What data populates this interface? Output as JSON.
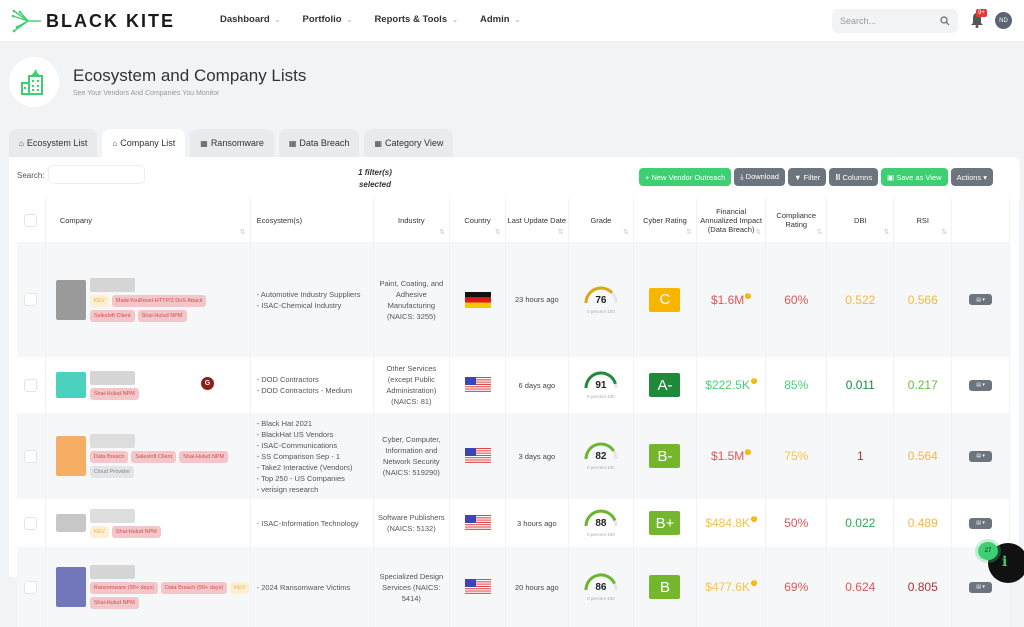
{
  "brand": {
    "name": "BLACK KITE",
    "accent": "#3ecf73"
  },
  "nav": {
    "items": [
      {
        "label": "Dashboard"
      },
      {
        "label": "Portfolio"
      },
      {
        "label": "Reports & Tools"
      },
      {
        "label": "Admin"
      }
    ]
  },
  "topbar": {
    "search_placeholder": "Search...",
    "notif_count": "9+",
    "avatar_initials": "ND"
  },
  "page": {
    "title": "Ecosystem and Company Lists",
    "subtitle": "See Your Vendors And Companies You Monitor"
  },
  "tabs": [
    {
      "label": "Ecosystem List",
      "icon": "buildings-icon"
    },
    {
      "label": "Company List",
      "icon": "building-icon",
      "active": true
    },
    {
      "label": "Ransomware",
      "icon": "table-icon"
    },
    {
      "label": "Data Breach",
      "icon": "table-icon"
    },
    {
      "label": "Category View",
      "icon": "table-icon"
    }
  ],
  "table_controls": {
    "search_label": "Search:",
    "search_value": "",
    "filter_note": "1 filter(s) selected",
    "buttons": {
      "new_outreach": "+ New Vendor Outreach",
      "download": "⤓ Download",
      "filter": "▼ Filter",
      "columns": "Ⅲ Columns",
      "save_view": "▣ Save as View",
      "actions": "Actions ▾"
    }
  },
  "columns": [
    "Company",
    "Ecosystem(s)",
    "Industry",
    "Country",
    "Last Update Date",
    "Grade",
    "Cyber Rating",
    "Financial Annualized Impact (Data Breach)",
    "Compliance Rating",
    "DBI",
    "RSI",
    ""
  ],
  "rows": [
    {
      "tags": [
        {
          "t": "KEV",
          "k": "kev"
        },
        {
          "t": "MadeYouReset HTTP/2 DoS Attack",
          "k": "red"
        },
        {
          "t": "Salesloft Client",
          "k": "red"
        },
        {
          "t": "Shai-Hulud NPM",
          "k": "red"
        }
      ],
      "ecosystems": [
        "- Automotive Industry Suppliers",
        "- ISAC-Chemical Industry"
      ],
      "industry": "Paint, Coating, and Adhesive Manufacturing (NAICS: 3255)",
      "country": "DE",
      "updated": "23 hours ago",
      "grade": "76",
      "grade_color": "#d9a912",
      "rating": "C",
      "rating_color": "#f7b500",
      "impact": "$1.6M",
      "impact_color": "#e05454",
      "compliance": "60%",
      "compliance_color": "#e05454",
      "dbi": "0.522",
      "dbi_color": "#f5b942",
      "rsi": "0.566",
      "rsi_color": "#f5b942",
      "blur": [
        "#8a8a8a",
        "#cfcfcf"
      ]
    },
    {
      "tags": [
        {
          "t": "Shai-Hulud NPM",
          "k": "red"
        }
      ],
      "ecosystems": [
        "- DOD Contractors",
        "- DOD Contractors - Medium"
      ],
      "industry": "Other Services (except Public Administration) (NAICS: 81)",
      "country": "US",
      "updated": "6 days ago",
      "grade": "91",
      "grade_color": "#1f8a3a",
      "rating": "A-",
      "rating_color": "#1f8a3a",
      "impact": "$222.5K",
      "impact_color": "#4bcf7a",
      "compliance": "85%",
      "compliance_color": "#4bcf7a",
      "dbi": "0.011",
      "dbi_color": "#1f8a3a",
      "rsi": "0.217",
      "rsi_color": "#6cbb3c",
      "blur": [
        "#2dc9b4",
        "#cfcfcf"
      ]
    },
    {
      "tags": [
        {
          "t": "Data Breach",
          "k": "red"
        },
        {
          "t": "Salesloft Client",
          "k": "red"
        },
        {
          "t": "Shai-Hulud NPM",
          "k": "red"
        },
        {
          "t": "Cloud Provider",
          "k": "cloud"
        }
      ],
      "ecosystems": [
        "- Black Hat 2021",
        "- BlackHat US Vendors",
        "- ISAC-Communications",
        "- SS Comparison Sep - 1",
        "- Take2 Interactive (Vendors)",
        "- Top 250 - US Companies",
        "- verisign research"
      ],
      "industry": "Cyber, Computer, Information and Network Security (NAICS: 519290)",
      "country": "US",
      "updated": "3 days ago",
      "grade": "82",
      "grade_color": "#6cb52d",
      "rating": "B-",
      "rating_color": "#74b72e",
      "impact": "$1.5M",
      "impact_color": "#e05454",
      "compliance": "75%",
      "compliance_color": "#f5c542",
      "dbi": "1",
      "dbi_color": "#b03030",
      "rsi": "0.564",
      "rsi_color": "#f5b942",
      "blur": [
        "#f4a14a",
        "#d8d8d8"
      ],
      "g_badge": "G"
    },
    {
      "tags": [
        {
          "t": "KEV",
          "k": "kev"
        },
        {
          "t": "Shai-Hulud NPM",
          "k": "red"
        }
      ],
      "ecosystems": [
        "- ISAC-Information Technology"
      ],
      "industry": "Software Publishers (NAICS: 5132)",
      "country": "US",
      "updated": "3 hours ago",
      "grade": "88",
      "grade_color": "#6cb52d",
      "rating": "B+",
      "rating_color": "#74b72e",
      "impact": "$484.8K",
      "impact_color": "#f5c542",
      "compliance": "50%",
      "compliance_color": "#e05454",
      "dbi": "0.022",
      "dbi_color": "#2ea84f",
      "rsi": "0.489",
      "rsi_color": "#f5b942",
      "blur": [
        "#bdbdbd",
        "#d8d8d8"
      ]
    },
    {
      "tags": [
        {
          "t": "Ransomware (90+ days)",
          "k": "red"
        },
        {
          "t": "Data Breach (90+ days)",
          "k": "red"
        },
        {
          "t": "KEV",
          "k": "kev"
        },
        {
          "t": "Shai-Hulud NPM",
          "k": "red"
        }
      ],
      "ecosystems": [
        "- 2024 Ransomware Victims"
      ],
      "industry": "Specialized Design Services (NAICS: 5414)",
      "country": "US",
      "updated": "20 hours ago",
      "grade": "86",
      "grade_color": "#6cb52d",
      "rating": "B",
      "rating_color": "#74b72e",
      "impact": "$477.6K",
      "impact_color": "#f5c542",
      "compliance": "69%",
      "compliance_color": "#e05454",
      "dbi": "0.624",
      "dbi_color": "#e05454",
      "rsi": "0.805",
      "rsi_color": "#b03030",
      "blur": [
        "#5a5fb0",
        "#d0d0d0"
      ]
    }
  ],
  "gauge_label": "0   percent 100",
  "help": {
    "count": "27"
  }
}
